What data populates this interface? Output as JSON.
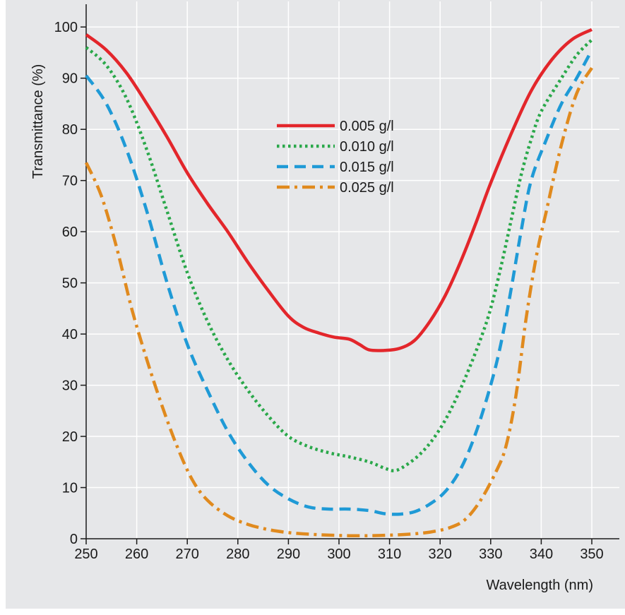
{
  "chart_data": {
    "type": "line",
    "title": "",
    "xlabel": "Wavelength (nm)",
    "ylabel": "Transmittance (%)",
    "xlim": [
      250,
      350
    ],
    "ylim": [
      0,
      105
    ],
    "xticks": [
      250,
      260,
      270,
      280,
      290,
      300,
      310,
      320,
      330,
      340,
      350
    ],
    "yticks": [
      0,
      10,
      20,
      30,
      40,
      50,
      60,
      70,
      80,
      90,
      100
    ],
    "grid": true,
    "legend_position": "top-center",
    "series": [
      {
        "name": "0.005 g/l",
        "color": "#e3262b",
        "dash": "solid",
        "points": [
          [
            250,
            98.5
          ],
          [
            254,
            95.5
          ],
          [
            258,
            91
          ],
          [
            262,
            85
          ],
          [
            266,
            78.5
          ],
          [
            270,
            71.5
          ],
          [
            274,
            65.5
          ],
          [
            278,
            60
          ],
          [
            282,
            54
          ],
          [
            286,
            48.5
          ],
          [
            290,
            43.5
          ],
          [
            293,
            41.3
          ],
          [
            296,
            40.2
          ],
          [
            299,
            39.4
          ],
          [
            302,
            39
          ],
          [
            304,
            38
          ],
          [
            306,
            36.9
          ],
          [
            309,
            36.8
          ],
          [
            312,
            37.2
          ],
          [
            315,
            38.8
          ],
          [
            318,
            42.5
          ],
          [
            321,
            47.5
          ],
          [
            324,
            54
          ],
          [
            327,
            61.5
          ],
          [
            330,
            69.5
          ],
          [
            334,
            79
          ],
          [
            338,
            87.5
          ],
          [
            342,
            93.5
          ],
          [
            346,
            97.5
          ],
          [
            350,
            99.5
          ]
        ]
      },
      {
        "name": "0.010 g/l",
        "color": "#2aa84a",
        "dash": "dot",
        "points": [
          [
            250,
            96
          ],
          [
            254,
            92.5
          ],
          [
            258,
            86
          ],
          [
            262,
            76
          ],
          [
            266,
            64
          ],
          [
            270,
            52
          ],
          [
            274,
            42.5
          ],
          [
            278,
            35
          ],
          [
            282,
            29
          ],
          [
            286,
            24
          ],
          [
            290,
            20
          ],
          [
            294,
            18
          ],
          [
            298,
            16.8
          ],
          [
            302,
            16
          ],
          [
            306,
            15
          ],
          [
            309,
            13.8
          ],
          [
            311,
            13.3
          ],
          [
            313,
            14.2
          ],
          [
            316,
            16.5
          ],
          [
            319,
            20
          ],
          [
            322,
            25
          ],
          [
            325,
            31.5
          ],
          [
            328,
            39
          ],
          [
            330,
            45
          ],
          [
            332,
            53
          ],
          [
            334,
            62
          ],
          [
            336,
            71
          ],
          [
            338,
            78
          ],
          [
            340,
            83.5
          ],
          [
            344,
            90
          ],
          [
            347,
            94.5
          ],
          [
            350,
            97.5
          ]
        ]
      },
      {
        "name": "0.015 g/l",
        "color": "#1f9ad6",
        "dash": "dash",
        "points": [
          [
            250,
            90.5
          ],
          [
            254,
            85
          ],
          [
            258,
            76
          ],
          [
            262,
            64
          ],
          [
            266,
            50
          ],
          [
            270,
            38
          ],
          [
            274,
            29
          ],
          [
            278,
            21
          ],
          [
            282,
            15
          ],
          [
            286,
            10.5
          ],
          [
            290,
            7.8
          ],
          [
            294,
            6.2
          ],
          [
            298,
            5.8
          ],
          [
            302,
            5.8
          ],
          [
            306,
            5.5
          ],
          [
            309,
            4.9
          ],
          [
            312,
            4.8
          ],
          [
            315,
            5.3
          ],
          [
            318,
            6.8
          ],
          [
            321,
            9.2
          ],
          [
            324,
            13.5
          ],
          [
            327,
            20.5
          ],
          [
            330,
            30
          ],
          [
            332,
            38
          ],
          [
            334,
            48.5
          ],
          [
            336,
            60
          ],
          [
            338,
            70
          ],
          [
            341,
            78
          ],
          [
            344,
            85
          ],
          [
            347,
            90
          ],
          [
            350,
            95.5
          ]
        ]
      },
      {
        "name": "0.025 g/l",
        "color": "#e08a1e",
        "dash": "dashdot",
        "points": [
          [
            250,
            73.5
          ],
          [
            253,
            67
          ],
          [
            256,
            57
          ],
          [
            259,
            45
          ],
          [
            262,
            35
          ],
          [
            265,
            26
          ],
          [
            268,
            18
          ],
          [
            271,
            11.5
          ],
          [
            274,
            7.5
          ],
          [
            278,
            4.5
          ],
          [
            282,
            2.8
          ],
          [
            286,
            1.8
          ],
          [
            290,
            1.2
          ],
          [
            294,
            0.9
          ],
          [
            298,
            0.7
          ],
          [
            302,
            0.6
          ],
          [
            306,
            0.6
          ],
          [
            310,
            0.7
          ],
          [
            314,
            0.9
          ],
          [
            318,
            1.3
          ],
          [
            322,
            2.2
          ],
          [
            325,
            3.8
          ],
          [
            328,
            7.5
          ],
          [
            331,
            13
          ],
          [
            333,
            18
          ],
          [
            335,
            28
          ],
          [
            337,
            43
          ],
          [
            339,
            55
          ],
          [
            341,
            64
          ],
          [
            344,
            77
          ],
          [
            347,
            87
          ],
          [
            350,
            92
          ]
        ]
      }
    ]
  }
}
